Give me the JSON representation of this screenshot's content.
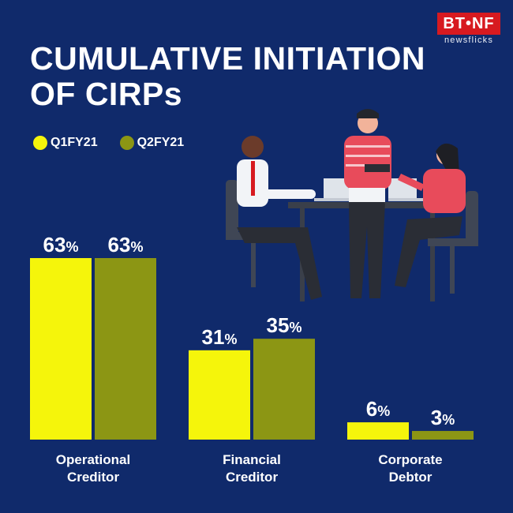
{
  "header": {
    "title_line1": "CUMULATIVE INITIATION",
    "title_line2": "OF CIRPs"
  },
  "logo": {
    "brand": "BT•NF",
    "tagline": "newsflicks",
    "color": "#d71a20"
  },
  "colors": {
    "background": "#102a6b",
    "q1": "#f5f50b",
    "q2": "#8c9614",
    "label": "#ffffff"
  },
  "chart_data": {
    "type": "bar",
    "title": "CUMULATIVE INITIATION OF CIRPs",
    "categories": [
      "Operational\nCreditor",
      "Financial\nCreditor",
      "Corporate\nDebtor"
    ],
    "series": [
      {
        "name": "Q1FY21",
        "values": [
          63,
          31,
          6
        ],
        "color": "#f5f50b"
      },
      {
        "name": "Q2FY21",
        "values": [
          63,
          35,
          3
        ],
        "color": "#8c9614"
      }
    ],
    "value_suffix": "%",
    "ylim": [
      0,
      63
    ],
    "grid": false,
    "legend_position": "top-left"
  }
}
